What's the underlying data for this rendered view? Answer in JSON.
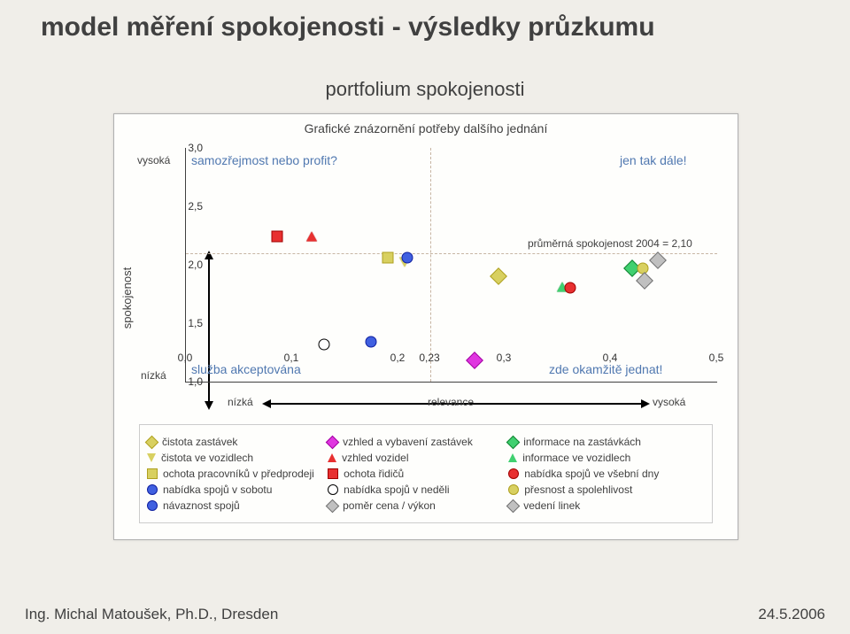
{
  "title": "model měření spokojenosti - výsledky průzkumu",
  "subtitle": "portfolium spokojenosti",
  "chart": {
    "title": "Grafické znázornění potřeby dalšího jednání",
    "type": "scatter",
    "xlim": [
      0.0,
      0.5
    ],
    "ylim": [
      1.0,
      3.0
    ],
    "xticks": [
      0.0,
      0.1,
      0.2,
      0.3,
      0.4,
      0.5
    ],
    "xtick_labels": [
      "0,0",
      "0,1",
      "0,2",
      "0,3",
      "0,4",
      "0,5"
    ],
    "xtick_extra_value": 0.23,
    "xtick_extra_label": "0,23",
    "yticks": [
      1.0,
      1.5,
      2.0,
      2.5,
      3.0
    ],
    "ytick_labels": [
      "1,0",
      "1,5",
      "2,0",
      "2,5",
      "3,0"
    ],
    "ref_y": 2.1,
    "ref_y_label": "průměrná spokojenost 2004 = 2,10",
    "ref_x": 0.23,
    "quadrants": {
      "tl": "samozřejmost nebo profit?",
      "tr": "jen tak dále!",
      "bl": "služba akceptována",
      "br": "zde okamžitě jednat!"
    },
    "quadrant_color": "#5078b0",
    "x_axis_label": "relevance",
    "y_axis_label": "spokojenost",
    "low_label": "nízká",
    "high_label": "vysoká",
    "grid_color": "#c7b5a3",
    "background_color": "#fefefc",
    "series": [
      {
        "key": "cistota_zastavek",
        "label": "čistota zastávek",
        "shape": "diamond",
        "fill": "#d8d060",
        "border": "#aea020",
        "x": 0.294,
        "y": 1.9
      },
      {
        "key": "vzhled_vybaveni_zastavek",
        "label": "vzhled a vybavení zastávek",
        "shape": "diamond",
        "fill": "#e036e0",
        "border": "#a000a0",
        "x": 0.272,
        "y": 1.18
      },
      {
        "key": "informace_zastavky",
        "label": "informace na zastávkách",
        "shape": "diamond",
        "fill": "#40d070",
        "border": "#108030",
        "x": 0.42,
        "y": 1.97
      },
      {
        "key": "cistota_vozidla",
        "label": "čistota ve vozidlech",
        "shape": "tri_dn",
        "fill": "#d8d060",
        "border": "#aea020",
        "x": 0.206,
        "y": 2.02
      },
      {
        "key": "vzhled_vozidel",
        "label": "vzhled vozidel",
        "shape": "tri_up",
        "fill": "#e83030",
        "border": "#a00000",
        "x": 0.118,
        "y": 2.24
      },
      {
        "key": "informace_vozidla",
        "label": "informace ve vozidlech",
        "shape": "tri_up",
        "fill": "#40d070",
        "border": "#108030",
        "x": 0.354,
        "y": 1.81
      },
      {
        "key": "ochota_predprodej",
        "label": "ochota pracovníků v předprodeji",
        "shape": "square",
        "fill": "#d8d060",
        "border": "#aea020",
        "x": 0.19,
        "y": 2.06
      },
      {
        "key": "ochota_ridicu",
        "label": "ochota řidičů",
        "shape": "square",
        "fill": "#e83030",
        "border": "#a00000",
        "x": 0.086,
        "y": 2.24
      },
      {
        "key": "spoje_vsedni",
        "label": "nabídka spojů ve všební dny",
        "shape": "circle",
        "fill": "#e83030",
        "border": "#a00000",
        "x": 0.362,
        "y": 1.8
      },
      {
        "key": "spoje_sobota",
        "label": "nabídka spojů v sobotu",
        "shape": "circle",
        "fill": "#4060e0",
        "border": "#1020a0",
        "x": 0.208,
        "y": 2.06
      },
      {
        "key": "spoje_nedele",
        "label": "nabídka spojů v neděli",
        "shape": "circle_open",
        "fill": "#ffffff",
        "border": "#000000",
        "x": 0.13,
        "y": 1.32
      },
      {
        "key": "presnost",
        "label": "přesnost a spolehlivost",
        "shape": "circle",
        "fill": "#d8d060",
        "border": "#aea020",
        "x": 0.43,
        "y": 1.97
      },
      {
        "key": "navaznost",
        "label": "návaznost spojů",
        "shape": "circle",
        "fill": "#4060e0",
        "border": "#1020a0",
        "x": 0.174,
        "y": 1.34
      },
      {
        "key": "cena_vykon",
        "label": "poměr cena / výkon",
        "shape": "diamond",
        "fill": "#c0c0c0",
        "border": "#707070",
        "x": 0.444,
        "y": 2.04
      },
      {
        "key": "vedeni_linek",
        "label": "vedení linek",
        "shape": "diamond",
        "fill": "#c0c0c0",
        "border": "#707070",
        "x": 0.432,
        "y": 1.86
      }
    ],
    "legend_cols": [
      [
        "cistota_zastavek",
        "cistota_vozidla",
        "ochota_predprodej",
        "spoje_sobota",
        "navaznost"
      ],
      [
        "vzhled_vybaveni_zastavek",
        "vzhled_vozidel",
        "ochota_ridicu",
        "spoje_nedele",
        "cena_vykon"
      ],
      [
        "informace_zastavky",
        "informace_vozidla",
        "spoje_vsedni",
        "presnost",
        "vedeni_linek"
      ]
    ]
  },
  "footer": {
    "left": "Ing. Michal Matoušek, Ph.D., Dresden",
    "right": "24.5.2006"
  }
}
